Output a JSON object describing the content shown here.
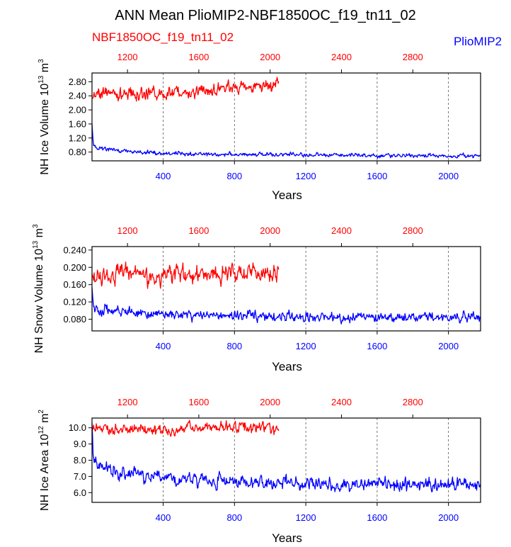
{
  "figure": {
    "title": "ANN Mean PlioMIP2-NBF1850OC_f19_tn11_02",
    "series_labels": {
      "top": "NBF1850OC_f19_tn11_02",
      "bottom": "PlioMIP2"
    },
    "colors": {
      "top_series": "#ff0000",
      "bottom_series": "#0000ff",
      "axes": "#000000",
      "grid": "#555555"
    }
  },
  "chart_data": [
    {
      "type": "line",
      "ylabel": {
        "text": "NH Ice Volume 10",
        "exp": "13",
        "unit": " m",
        "unit_exp": "3"
      },
      "xlabel": "Years",
      "bottom_axis": {
        "range": [
          1,
          2180
        ],
        "ticks": [
          400,
          800,
          1200,
          1600,
          2000
        ],
        "tick_labels": [
          "400",
          "800",
          "1200",
          "1600",
          "2000"
        ]
      },
      "top_axis": {
        "range": [
          1001,
          3180
        ],
        "ticks": [
          1200,
          1600,
          2000,
          2400,
          2800
        ],
        "tick_labels": [
          "1200",
          "1600",
          "2000",
          "2400",
          "2800"
        ]
      },
      "ylim": [
        0.55,
        3.05
      ],
      "yticks": [
        0.8,
        1.2,
        1.6,
        2.0,
        2.4,
        2.8
      ],
      "ytick_labels": [
        "0.80",
        "1.20",
        "1.60",
        "2.00",
        "2.40",
        "2.80"
      ],
      "grid": "dashed vertical at bottom-axis ticks",
      "series": [
        {
          "name": "NBF1850OC_f19_tn11_02",
          "axis": "top",
          "x_range": [
            1001,
            2050
          ],
          "trend_x": [
            1001,
            1050,
            1200,
            1400,
            1600,
            1800,
            2000,
            2050
          ],
          "trend_y": [
            2.35,
            2.5,
            2.45,
            2.45,
            2.55,
            2.65,
            2.72,
            2.72
          ],
          "noise": 0.14,
          "x_step": 3
        },
        {
          "name": "PlioMIP2",
          "axis": "bottom",
          "x_range": [
            1,
            2180
          ],
          "trend_x": [
            1,
            8,
            20,
            50,
            200,
            400,
            800,
            1200,
            1600,
            2000,
            2180
          ],
          "trend_y": [
            1.6,
            1.05,
            0.95,
            0.9,
            0.82,
            0.76,
            0.73,
            0.72,
            0.7,
            0.7,
            0.7
          ],
          "noise": 0.045,
          "x_step": 3
        }
      ]
    },
    {
      "type": "line",
      "ylabel": {
        "text": "NH Snow Volume 10",
        "exp": "13",
        "unit": " m",
        "unit_exp": "3"
      },
      "xlabel": "Years",
      "bottom_axis": {
        "range": [
          1,
          2180
        ],
        "ticks": [
          400,
          800,
          1200,
          1600,
          2000
        ],
        "tick_labels": [
          "400",
          "800",
          "1200",
          "1600",
          "2000"
        ]
      },
      "top_axis": {
        "range": [
          1001,
          3180
        ],
        "ticks": [
          1200,
          1600,
          2000,
          2400,
          2800
        ],
        "tick_labels": [
          "1200",
          "1600",
          "2000",
          "2400",
          "2800"
        ]
      },
      "ylim": [
        0.053,
        0.248
      ],
      "yticks": [
        0.08,
        0.12,
        0.16,
        0.2,
        0.24
      ],
      "ytick_labels": [
        "0.080",
        "0.120",
        "0.160",
        "0.200",
        "0.240"
      ],
      "grid": "dashed vertical at bottom-axis ticks",
      "series": [
        {
          "name": "NBF1850OC_f19_tn11_02",
          "axis": "top",
          "x_range": [
            1001,
            2050
          ],
          "trend_x": [
            1001,
            1200,
            1400,
            1600,
            1800,
            2000,
            2050
          ],
          "trend_y": [
            0.18,
            0.185,
            0.18,
            0.185,
            0.19,
            0.185,
            0.18
          ],
          "noise": 0.016,
          "x_step": 3
        },
        {
          "name": "PlioMIP2",
          "axis": "bottom",
          "x_range": [
            1,
            2180
          ],
          "trend_x": [
            1,
            6,
            20,
            100,
            400,
            800,
            1200,
            1600,
            2000,
            2180
          ],
          "trend_y": [
            0.15,
            0.11,
            0.102,
            0.1,
            0.09,
            0.088,
            0.085,
            0.085,
            0.085,
            0.085
          ],
          "noise": 0.009,
          "x_step": 3
        }
      ]
    },
    {
      "type": "line",
      "ylabel": {
        "text": "NH Ice Area 10",
        "exp": "12",
        "unit": " m",
        "unit_exp": "2"
      },
      "xlabel": "Years",
      "bottom_axis": {
        "range": [
          1,
          2180
        ],
        "ticks": [
          400,
          800,
          1200,
          1600,
          2000
        ],
        "tick_labels": [
          "400",
          "800",
          "1200",
          "1600",
          "2000"
        ]
      },
      "top_axis": {
        "range": [
          1001,
          3180
        ],
        "ticks": [
          1200,
          1600,
          2000,
          2400,
          2800
        ],
        "tick_labels": [
          "1200",
          "1600",
          "2000",
          "2400",
          "2800"
        ]
      },
      "ylim": [
        5.4,
        10.6
      ],
      "yticks": [
        6.0,
        7.0,
        8.0,
        9.0,
        10.0
      ],
      "ytick_labels": [
        "6.0",
        "7.0",
        "8.0",
        "9.0",
        "10.0"
      ],
      "grid": "dashed vertical at bottom-axis ticks",
      "series": [
        {
          "name": "NBF1850OC_f19_tn11_02",
          "axis": "top",
          "x_range": [
            1001,
            2050
          ],
          "trend_x": [
            1001,
            1200,
            1400,
            1600,
            1800,
            2000,
            2050
          ],
          "trend_y": [
            10.0,
            9.9,
            9.8,
            10.0,
            10.0,
            10.0,
            9.9
          ],
          "noise": 0.28,
          "x_step": 3
        },
        {
          "name": "PlioMIP2",
          "axis": "bottom",
          "x_range": [
            1,
            2180
          ],
          "trend_x": [
            1,
            8,
            30,
            100,
            300,
            600,
            1000,
            1400,
            1800,
            2180
          ],
          "trend_y": [
            10.2,
            8.2,
            7.6,
            7.4,
            7.0,
            6.8,
            6.6,
            6.5,
            6.5,
            6.5
          ],
          "noise": 0.32,
          "x_step": 3
        }
      ]
    }
  ]
}
